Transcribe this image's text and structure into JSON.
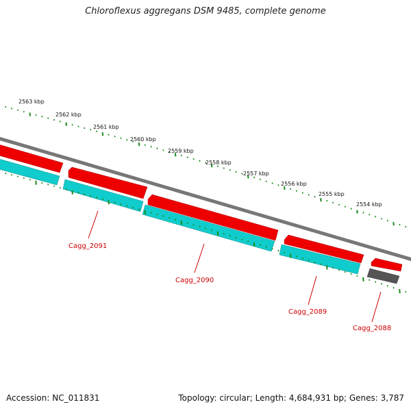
{
  "header": {
    "title": "Chloroflexus aggregans DSM 9485, complete genome"
  },
  "footer": {
    "accession": "Accession: NC_011831",
    "summary": "Topology: circular; Length: 4,684,931 bp; Genes: 3,787"
  },
  "colors": {
    "forward_cds": "#ee0000",
    "reverse_cds": "#11cccc",
    "other_feature": "#555555",
    "backbone": "#777777",
    "ticks": "#1a8a1a",
    "gene_label": "#cc0000"
  },
  "diagram": {
    "kbp_ticks": [
      "2563 kbp",
      "2562 kbp",
      "2561 kbp",
      "2560 kbp",
      "2559 kbp",
      "2558 kbp",
      "2557 kbp",
      "2556 kbp",
      "2555 kbp",
      "2554 kbp"
    ],
    "gene_labels": [
      "Cagg_2091",
      "Cagg_2090",
      "Cagg_2089",
      "Cagg_2088"
    ]
  }
}
